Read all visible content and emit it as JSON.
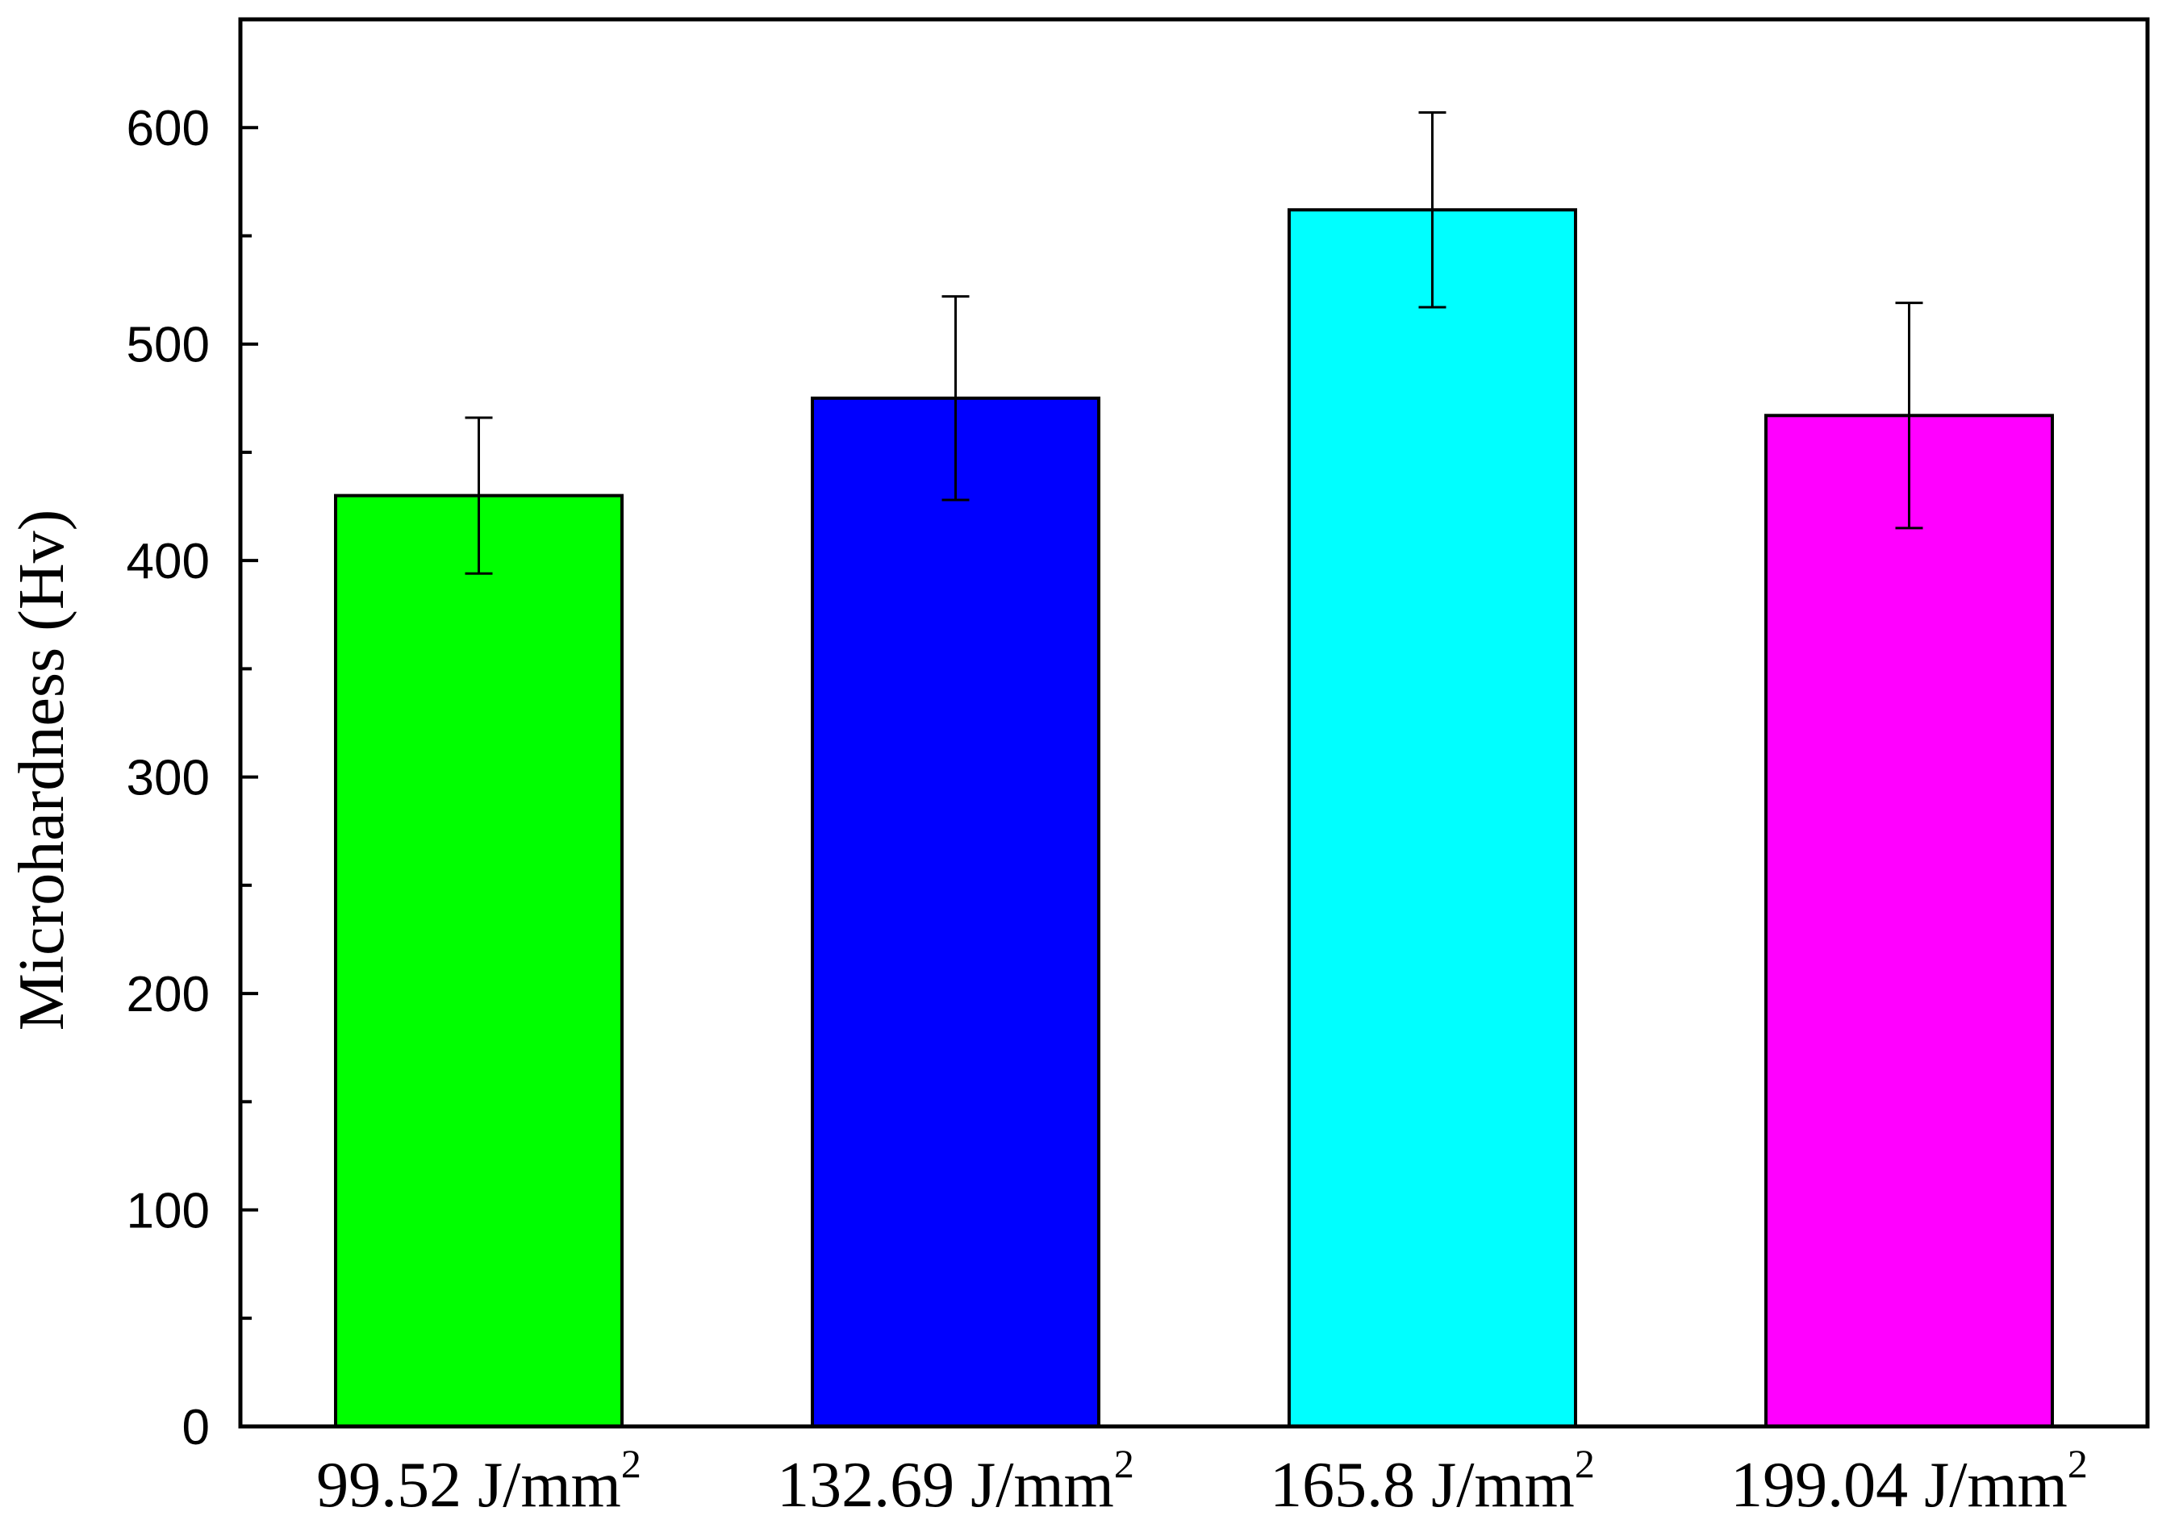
{
  "chart_data": {
    "type": "bar",
    "title": "",
    "xlabel": "",
    "ylabel": "Microhardness (Hv)",
    "ylim": [
      0,
      650
    ],
    "yticks": [
      0,
      100,
      200,
      300,
      400,
      500,
      600
    ],
    "y_minor_step": 50,
    "grid": false,
    "categories": [
      {
        "value": "99.52 J/mm",
        "sup": "2"
      },
      {
        "value": "132.69 J/mm",
        "sup": "2"
      },
      {
        "value": "165.8 J/mm",
        "sup": "2"
      },
      {
        "value": "199.04 J/mm",
        "sup": "2"
      }
    ],
    "values": [
      430,
      475,
      562,
      467
    ],
    "errors": [
      36,
      47,
      45,
      52
    ],
    "colors": [
      "#00ff00",
      "#0000ff",
      "#00ffff",
      "#ff00ff"
    ]
  }
}
